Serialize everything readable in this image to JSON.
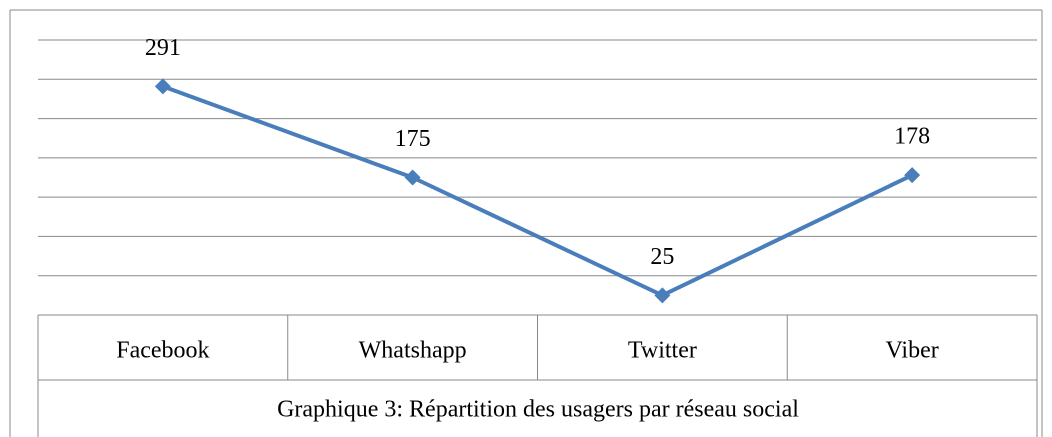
{
  "chart_data": {
    "type": "line",
    "caption": "Graphique 3: Répartition des usagers par réseau social",
    "categories": [
      "Facebook",
      "Whatshapp",
      "Twitter",
      "Viber"
    ],
    "values": [
      291,
      175,
      25,
      178
    ],
    "color": "#4a7ebb",
    "ylim": [
      0,
      350
    ],
    "yticks": [
      0,
      50,
      100,
      150,
      200,
      250,
      300,
      350
    ],
    "grid": true
  }
}
